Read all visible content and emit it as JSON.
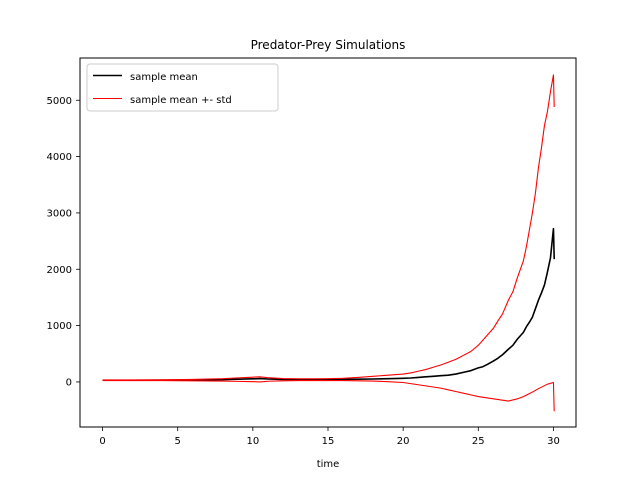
{
  "chart_data": {
    "type": "line",
    "title": "Predator-Prey Simulations",
    "xlabel": "time",
    "ylabel": "",
    "xlim": [
      -1.5,
      31.5
    ],
    "ylim": [
      -800,
      5750
    ],
    "xticks": [
      0,
      5,
      10,
      15,
      20,
      25,
      30
    ],
    "yticks": [
      0,
      1000,
      2000,
      3000,
      4000,
      5000
    ],
    "grid": false,
    "legend_position": "top-left",
    "colors": {
      "mean": "#000000",
      "std": "#ff0000"
    },
    "series": [
      {
        "name": "sample mean",
        "color": "#000000",
        "x": [
          0,
          2,
          4,
          6,
          8,
          9,
          10,
          10.5,
          11,
          12,
          13,
          14,
          15,
          16,
          17,
          18,
          19,
          20,
          20.5,
          21,
          21.5,
          22,
          22.5,
          23,
          23.5,
          24,
          24.5,
          25,
          25.3,
          25.6,
          26,
          26.3,
          26.6,
          27,
          27.3,
          27.6,
          28,
          28.2,
          28.4,
          28.6,
          28.8,
          29,
          29.2,
          29.4,
          29.6,
          29.8,
          30,
          30.05
        ],
        "y": [
          30,
          30,
          32,
          36,
          42,
          48,
          55,
          60,
          52,
          45,
          42,
          40,
          42,
          45,
          48,
          52,
          58,
          65,
          70,
          80,
          90,
          100,
          110,
          120,
          140,
          170,
          200,
          250,
          270,
          310,
          370,
          420,
          480,
          580,
          650,
          760,
          880,
          980,
          1060,
          1150,
          1300,
          1450,
          1580,
          1720,
          1950,
          2200,
          2720,
          2180
        ]
      },
      {
        "name": "sample mean +- std",
        "color": "#ff0000",
        "x": [
          0,
          2,
          4,
          6,
          8,
          9,
          10,
          10.5,
          11,
          12,
          13,
          14,
          15,
          16,
          17,
          18,
          19,
          20,
          20.5,
          21,
          21.5,
          22,
          22.5,
          23,
          23.5,
          24,
          24.5,
          25,
          25.3,
          25.6,
          26,
          26.3,
          26.6,
          27,
          27.3,
          27.6,
          28,
          28.2,
          28.4,
          28.6,
          28.8,
          29,
          29.2,
          29.4,
          29.6,
          29.8,
          30,
          30.05
        ],
        "y": [
          35,
          35,
          38,
          45,
          58,
          72,
          85,
          90,
          75,
          60,
          55,
          55,
          58,
          65,
          80,
          100,
          120,
          140,
          160,
          190,
          220,
          260,
          300,
          350,
          400,
          470,
          540,
          650,
          740,
          830,
          950,
          1080,
          1200,
          1450,
          1600,
          1850,
          2150,
          2400,
          2700,
          3000,
          3350,
          3800,
          4150,
          4550,
          4800,
          5150,
          5450,
          4880
        ]
      },
      {
        "name": "",
        "color": "#ff0000",
        "x": [
          0,
          2,
          4,
          6,
          8,
          9,
          10,
          10.5,
          11,
          12,
          13,
          14,
          15,
          16,
          17,
          18,
          19,
          20,
          20.5,
          21,
          21.5,
          22,
          22.5,
          23,
          23.5,
          24,
          24.5,
          25,
          25.5,
          26,
          26.5,
          27,
          27.3,
          27.6,
          28,
          28.3,
          28.6,
          29,
          29.3,
          29.6,
          30,
          30.05
        ],
        "y": [
          25,
          25,
          24,
          20,
          15,
          10,
          5,
          0,
          12,
          20,
          25,
          25,
          25,
          25,
          20,
          15,
          5,
          -10,
          -30,
          -50,
          -70,
          -90,
          -110,
          -140,
          -170,
          -200,
          -230,
          -260,
          -280,
          -300,
          -320,
          -340,
          -320,
          -300,
          -260,
          -220,
          -180,
          -120,
          -80,
          -40,
          -10,
          -520
        ]
      }
    ]
  }
}
